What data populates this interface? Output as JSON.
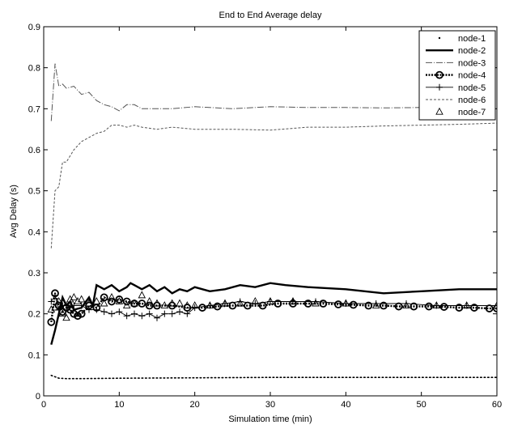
{
  "chart_data": {
    "type": "line",
    "title": "End to End Average delay",
    "xlabel": "Simulation time (min)",
    "ylabel": "Avg Delay (s)",
    "xlim": [
      0,
      60
    ],
    "ylim": [
      0,
      0.9
    ],
    "xticks": [
      "0",
      "10",
      "20",
      "30",
      "40",
      "50",
      "60"
    ],
    "yticks": [
      "0",
      "0.1",
      "0.2",
      "0.3",
      "0.4",
      "0.5",
      "0.6",
      "0.7",
      "0.8",
      "0.9"
    ],
    "grid": false,
    "legend_position": "top-right",
    "series": [
      {
        "name": "node-1",
        "style": "dotted-points",
        "color": "#000000",
        "x": [
          1,
          2,
          3,
          5,
          10,
          20,
          30,
          40,
          50,
          60
        ],
        "y": [
          0.05,
          0.043,
          0.042,
          0.042,
          0.043,
          0.044,
          0.045,
          0.045,
          0.045,
          0.045
        ]
      },
      {
        "name": "node-2",
        "style": "thick-solid",
        "color": "#000000",
        "x": [
          1,
          1.5,
          2,
          2.5,
          3,
          3.5,
          4,
          5,
          6,
          6.5,
          7,
          8,
          9,
          10,
          11,
          11.5,
          12,
          13,
          14,
          15,
          16,
          17,
          18,
          19,
          20,
          22,
          24,
          26,
          28,
          30,
          32,
          35,
          40,
          45,
          50,
          55,
          60
        ],
        "y": [
          0.125,
          0.16,
          0.2,
          0.24,
          0.22,
          0.23,
          0.21,
          0.215,
          0.24,
          0.22,
          0.27,
          0.26,
          0.27,
          0.255,
          0.265,
          0.275,
          0.27,
          0.26,
          0.27,
          0.255,
          0.265,
          0.25,
          0.26,
          0.255,
          0.265,
          0.255,
          0.26,
          0.27,
          0.265,
          0.275,
          0.27,
          0.265,
          0.26,
          0.25,
          0.255,
          0.26,
          0.26
        ]
      },
      {
        "name": "node-3",
        "style": "dash-dot",
        "color": "#555555",
        "x": [
          1,
          1.5,
          2,
          2.5,
          3,
          4,
          5,
          6,
          7,
          8,
          9,
          10,
          11,
          12,
          13,
          15,
          17,
          20,
          25,
          30,
          35,
          40,
          45,
          50,
          55,
          60
        ],
        "y": [
          0.67,
          0.81,
          0.755,
          0.76,
          0.75,
          0.755,
          0.735,
          0.74,
          0.72,
          0.71,
          0.705,
          0.695,
          0.71,
          0.71,
          0.7,
          0.7,
          0.7,
          0.705,
          0.7,
          0.705,
          0.703,
          0.703,
          0.702,
          0.703,
          0.702,
          0.702
        ]
      },
      {
        "name": "node-4",
        "style": "thick-dotted-circle",
        "color": "#000000",
        "x": [
          1,
          1.5,
          2,
          2.5,
          3,
          3.5,
          4,
          4.5,
          5,
          6,
          7,
          8,
          9,
          10,
          11,
          12,
          13,
          14,
          15,
          17,
          19,
          21,
          23,
          25,
          27,
          29,
          31,
          33,
          35,
          37,
          39,
          41,
          43,
          45,
          47,
          49,
          51,
          53,
          55,
          57,
          59,
          60
        ],
        "y": [
          0.18,
          0.25,
          0.22,
          0.205,
          0.215,
          0.21,
          0.2,
          0.195,
          0.2,
          0.22,
          0.215,
          0.24,
          0.23,
          0.235,
          0.23,
          0.225,
          0.225,
          0.22,
          0.22,
          0.22,
          0.215,
          0.215,
          0.218,
          0.22,
          0.22,
          0.22,
          0.225,
          0.225,
          0.225,
          0.225,
          0.223,
          0.222,
          0.22,
          0.22,
          0.218,
          0.218,
          0.218,
          0.217,
          0.215,
          0.215,
          0.213,
          0.213
        ]
      },
      {
        "name": "node-5",
        "style": "plus-marker",
        "color": "#000000",
        "x": [
          1,
          1.5,
          2,
          2.5,
          3,
          3.5,
          4,
          5,
          6,
          7,
          8,
          9,
          10,
          11,
          12,
          13,
          14,
          15,
          16,
          17,
          18,
          19,
          20,
          22,
          24,
          26,
          28,
          30,
          33,
          36,
          40,
          44,
          48,
          52,
          56,
          60
        ],
        "y": [
          0.23,
          0.245,
          0.21,
          0.22,
          0.22,
          0.215,
          0.22,
          0.22,
          0.21,
          0.21,
          0.205,
          0.2,
          0.205,
          0.195,
          0.2,
          0.195,
          0.2,
          0.19,
          0.2,
          0.2,
          0.205,
          0.2,
          0.215,
          0.22,
          0.225,
          0.23,
          0.225,
          0.23,
          0.23,
          0.23,
          0.225,
          0.225,
          0.225,
          0.22,
          0.22,
          0.22
        ]
      },
      {
        "name": "node-6",
        "style": "dashed",
        "color": "#555555",
        "x": [
          1,
          1.5,
          2,
          2.5,
          3,
          4,
          5,
          6,
          7,
          8,
          9,
          10,
          11,
          12,
          13,
          15,
          17,
          20,
          25,
          30,
          35,
          40,
          45,
          50,
          55,
          60
        ],
        "y": [
          0.36,
          0.5,
          0.51,
          0.57,
          0.57,
          0.6,
          0.62,
          0.63,
          0.64,
          0.645,
          0.66,
          0.66,
          0.655,
          0.66,
          0.655,
          0.65,
          0.655,
          0.65,
          0.65,
          0.648,
          0.655,
          0.655,
          0.658,
          0.66,
          0.662,
          0.665
        ]
      },
      {
        "name": "node-7",
        "style": "triangle-marker",
        "color": "#000000",
        "x": [
          1,
          1.5,
          2,
          2.5,
          3,
          3.5,
          4,
          4.5,
          5,
          6,
          7,
          8,
          9,
          10,
          11,
          12,
          13,
          14,
          15,
          16,
          17,
          18,
          19,
          20,
          22,
          24,
          26,
          28,
          30,
          33,
          36,
          40,
          44,
          48,
          52,
          56,
          60
        ],
        "y": [
          0.21,
          0.215,
          0.23,
          0.2,
          0.19,
          0.235,
          0.24,
          0.23,
          0.235,
          0.225,
          0.23,
          0.225,
          0.24,
          0.23,
          0.22,
          0.225,
          0.245,
          0.23,
          0.225,
          0.22,
          0.225,
          0.225,
          0.22,
          0.22,
          0.22,
          0.225,
          0.225,
          0.23,
          0.23,
          0.23,
          0.225,
          0.225,
          0.22,
          0.22,
          0.22,
          0.22,
          0.22
        ]
      }
    ]
  }
}
